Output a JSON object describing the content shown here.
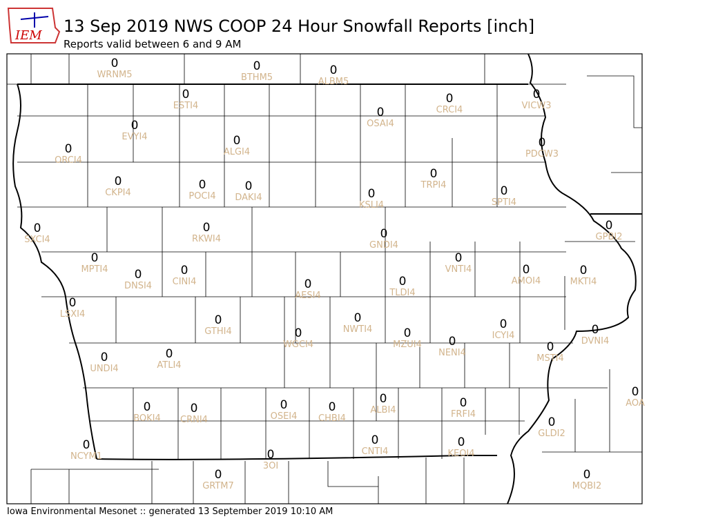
{
  "header": {
    "logo": "IEM",
    "title": "13 Sep 2019 NWS COOP 24 Hour Snowfall Reports [inch]",
    "subtitle": "Reports valid between 6 and 9 AM"
  },
  "stations": [
    {
      "id": "WRNM5",
      "value": 0
    },
    {
      "id": "BTHM5",
      "value": 0
    },
    {
      "id": "ALBM5",
      "value": 0
    },
    {
      "id": "ESTI4",
      "value": 0
    },
    {
      "id": "CRCI4",
      "value": 0
    },
    {
      "id": "VICW3",
      "value": 0
    },
    {
      "id": "OSAI4",
      "value": 0
    },
    {
      "id": "EVYI4",
      "value": 0
    },
    {
      "id": "ALGI4",
      "value": 0
    },
    {
      "id": "PDCW3",
      "value": 0
    },
    {
      "id": "ORCI4",
      "value": 0
    },
    {
      "id": "TRPI4",
      "value": 0
    },
    {
      "id": "CKPI4",
      "value": 0
    },
    {
      "id": "POCI4",
      "value": 0
    },
    {
      "id": "DAKI4",
      "value": 0
    },
    {
      "id": "SPTI4",
      "value": 0
    },
    {
      "id": "KSLI4",
      "value": 0
    },
    {
      "id": "GPBI2",
      "value": 0
    },
    {
      "id": "SXCI4",
      "value": 0
    },
    {
      "id": "RKWI4",
      "value": 0
    },
    {
      "id": "GNDI4",
      "value": 0
    },
    {
      "id": "MPTI4",
      "value": 0
    },
    {
      "id": "VNTI4",
      "value": 0
    },
    {
      "id": "AMOI4",
      "value": 0
    },
    {
      "id": "DNSI4",
      "value": 0
    },
    {
      "id": "CINI4",
      "value": 0
    },
    {
      "id": "MKTI4",
      "value": 0
    },
    {
      "id": "TLDI4",
      "value": 0
    },
    {
      "id": "AESI4",
      "value": 0
    },
    {
      "id": "LSXI4",
      "value": 0
    },
    {
      "id": "GTHI4",
      "value": 0
    },
    {
      "id": "NWTI4",
      "value": 0
    },
    {
      "id": "ICYI4",
      "value": 0
    },
    {
      "id": "DVNI4",
      "value": 0
    },
    {
      "id": "WGCI4",
      "value": 0
    },
    {
      "id": "MZUI4",
      "value": 0
    },
    {
      "id": "NENI4",
      "value": 0
    },
    {
      "id": "MSTI4",
      "value": 0
    },
    {
      "id": "UNDI4",
      "value": 0
    },
    {
      "id": "ATLI4",
      "value": 0
    },
    {
      "id": "AOA",
      "value": 0
    },
    {
      "id": "OSEI4",
      "value": 0
    },
    {
      "id": "ALBI4",
      "value": 0
    },
    {
      "id": "FRFI4",
      "value": 0
    },
    {
      "id": "BOKI4",
      "value": 0
    },
    {
      "id": "CRNI4",
      "value": 0
    },
    {
      "id": "CHBI4",
      "value": 0
    },
    {
      "id": "GLDI2",
      "value": 0
    },
    {
      "id": "NCYM1",
      "value": 0
    },
    {
      "id": "CNTI4",
      "value": 0
    },
    {
      "id": "KEOI4",
      "value": 0
    },
    {
      "id": "3OI",
      "value": 0
    },
    {
      "id": "GRTM7",
      "value": 0
    },
    {
      "id": "MQBI2",
      "value": 0
    }
  ],
  "footer": "Iowa Environmental Mesonet :: generated 13 September 2019 10:10 AM"
}
